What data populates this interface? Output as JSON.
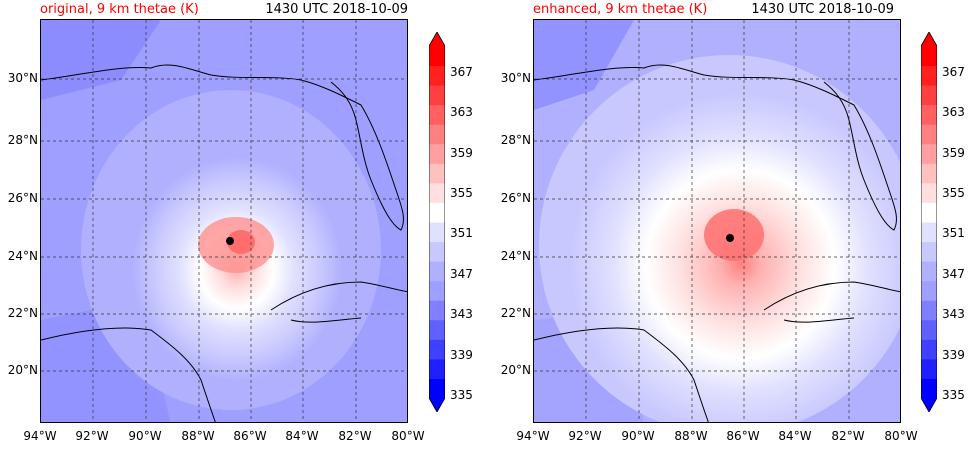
{
  "panels": [
    {
      "title_left": "original, 9 km thetae (K)",
      "title_right": "1430 UTC 2018-10-09"
    },
    {
      "title_left": "enhanced, 9 km thetae (K)",
      "title_right": "1430 UTC 2018-10-09"
    }
  ],
  "lat_labels": [
    "30°N",
    "28°N",
    "26°N",
    "24°N",
    "22°N",
    "20°N"
  ],
  "lon_labels": [
    "94°W",
    "92°W",
    "90°W",
    "88°W",
    "86°W",
    "84°W",
    "82°W",
    "80°W"
  ],
  "colorbar": {
    "tick_labels": [
      "367",
      "363",
      "359",
      "355",
      "351",
      "347",
      "343",
      "339",
      "335"
    ],
    "levels": [
      335,
      337,
      339,
      341,
      343,
      345,
      347,
      349,
      351,
      353,
      355,
      357,
      359,
      361,
      363,
      365,
      367,
      369
    ],
    "colors": [
      "#0000ff",
      "#2020ff",
      "#4040ff",
      "#6060ff",
      "#8080ff",
      "#9f9fff",
      "#b0b0ff",
      "#c8c8ff",
      "#e0e0ff",
      "#ffffff",
      "#ffe0e0",
      "#ffc0c0",
      "#ffa0a0",
      "#ff8080",
      "#ff6060",
      "#ff4040",
      "#ff2020",
      "#ff0000"
    ]
  }
}
